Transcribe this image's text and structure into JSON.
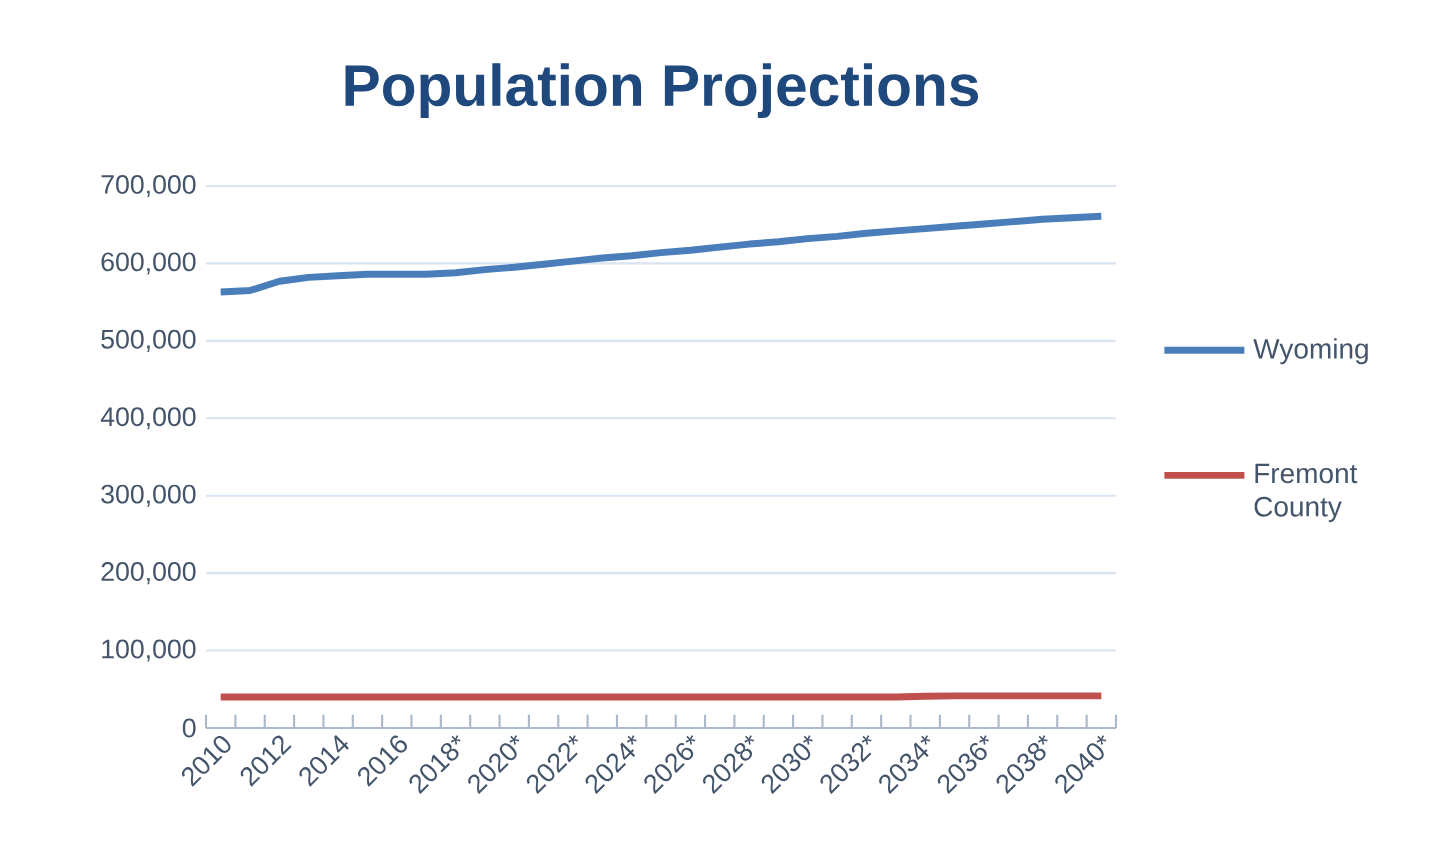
{
  "chart_data": {
    "type": "line",
    "title": "Population Projections",
    "categories": [
      "2010",
      null,
      "2012",
      null,
      "2014",
      null,
      "2016",
      null,
      "2018*",
      null,
      "2020*",
      null,
      "2022*",
      null,
      "2024*",
      null,
      "2026*",
      null,
      "2028*",
      null,
      "2030*",
      null,
      "2032*",
      null,
      "2034*",
      null,
      "2036*",
      null,
      "2038*",
      null,
      "2040*"
    ],
    "series": [
      {
        "name": "Wyoming",
        "color": "#4a7ebb",
        "values": [
          563000,
          565000,
          577000,
          582000,
          584000,
          586000,
          586000,
          586000,
          588000,
          592000,
          595000,
          599000,
          603000,
          607000,
          610000,
          614000,
          617000,
          621000,
          625000,
          628000,
          632000,
          635000,
          639000,
          642000,
          645000,
          648000,
          651000,
          654000,
          657000,
          659000,
          661000
        ]
      },
      {
        "name": "Fremont County",
        "color": "#c0504d",
        "values": [
          40000,
          40000,
          40000,
          40000,
          40000,
          40000,
          40000,
          40000,
          40000,
          40000,
          40000,
          40000,
          40000,
          40000,
          40000,
          40000,
          40000,
          40000,
          40000,
          40000,
          40000,
          40000,
          40000,
          40000,
          41000,
          41500,
          41500,
          41500,
          41500,
          41500,
          41500
        ]
      }
    ],
    "ylim": [
      0,
      700000
    ],
    "yticks": [
      0,
      {
        "value": 100000,
        "label": "100,000"
      },
      {
        "value": 200000,
        "label": "200,000"
      },
      {
        "value": 300000,
        "label": "300,000"
      },
      {
        "value": 400000,
        "label": "400,000"
      },
      {
        "value": 500000,
        "label": "500,000"
      },
      {
        "value": 600000,
        "label": "600,000"
      },
      {
        "value": 700000,
        "label": "700,000"
      }
    ],
    "grid": "y",
    "legend": "right",
    "line_style": "solid"
  }
}
